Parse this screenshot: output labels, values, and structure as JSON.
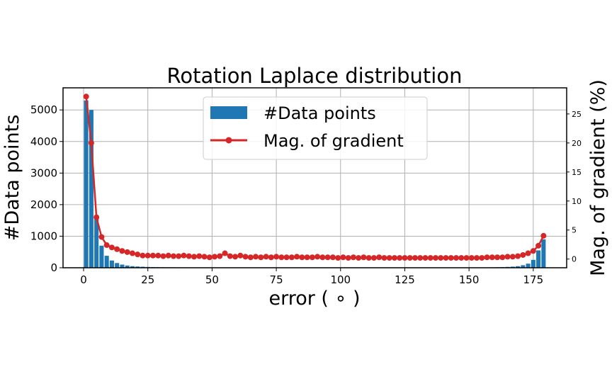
{
  "chart_data": {
    "type": "bar+line",
    "title": "Rotation Laplace distribution",
    "xlabel": "error ( ∘ )",
    "ylabel_left": "#Data points",
    "ylabel_right": "Mag. of gradient (%)",
    "xlim": [
      -8,
      188
    ],
    "ylim_left": [
      0,
      5700
    ],
    "ylim_right": [
      -1.5,
      29.5
    ],
    "x_ticks": [
      0,
      25,
      50,
      75,
      100,
      125,
      150,
      175
    ],
    "y_left_ticks": [
      0,
      1000,
      2000,
      3000,
      4000,
      5000
    ],
    "y_right_ticks": [
      0,
      5,
      10,
      15,
      20,
      25
    ],
    "grid": true,
    "legend_position": "top-center",
    "colors": {
      "bars": "#1f77b4",
      "line": "#d62728"
    },
    "series": [
      {
        "name": "#Data points",
        "type": "bar",
        "axis": "left",
        "bin_width": 2,
        "x": [
          1,
          3,
          5,
          7,
          9,
          11,
          13,
          15,
          17,
          19,
          21,
          23,
          25,
          27,
          29,
          31,
          33,
          35,
          37,
          39,
          41,
          43,
          45,
          47,
          49,
          51,
          53,
          55,
          57,
          59,
          61,
          63,
          65,
          67,
          69,
          71,
          73,
          75,
          77,
          79,
          81,
          83,
          85,
          87,
          89,
          91,
          93,
          95,
          97,
          99,
          101,
          103,
          105,
          107,
          109,
          111,
          113,
          115,
          117,
          119,
          121,
          123,
          125,
          127,
          129,
          131,
          133,
          135,
          137,
          139,
          141,
          143,
          145,
          147,
          149,
          151,
          153,
          155,
          157,
          159,
          161,
          163,
          165,
          167,
          169,
          171,
          173,
          175,
          177,
          179
        ],
        "values": [
          5300,
          5000,
          1600,
          700,
          380,
          230,
          150,
          100,
          70,
          50,
          40,
          32,
          26,
          22,
          19,
          17,
          15,
          14,
          13,
          12,
          11,
          11,
          10,
          10,
          10,
          9,
          9,
          9,
          9,
          9,
          8,
          8,
          8,
          8,
          8,
          8,
          8,
          8,
          8,
          8,
          8,
          8,
          8,
          8,
          8,
          8,
          8,
          8,
          8,
          8,
          8,
          8,
          8,
          8,
          8,
          8,
          8,
          8,
          8,
          8,
          8,
          8,
          8,
          8,
          8,
          8,
          8,
          8,
          8,
          8,
          8,
          8,
          8,
          9,
          9,
          9,
          10,
          11,
          12,
          14,
          17,
          21,
          27,
          36,
          50,
          80,
          130,
          250,
          550,
          900
        ]
      },
      {
        "name": "Mag. of gradient",
        "type": "line",
        "axis": "right",
        "x": [
          1,
          3,
          5,
          7,
          9,
          11,
          13,
          15,
          17,
          19,
          21,
          23,
          25,
          27,
          29,
          31,
          33,
          35,
          37,
          39,
          41,
          43,
          45,
          47,
          49,
          51,
          53,
          55,
          57,
          59,
          61,
          63,
          65,
          67,
          69,
          71,
          73,
          75,
          77,
          79,
          81,
          83,
          85,
          87,
          89,
          91,
          93,
          95,
          97,
          99,
          101,
          103,
          105,
          107,
          109,
          111,
          113,
          115,
          117,
          119,
          121,
          123,
          125,
          127,
          129,
          131,
          133,
          135,
          137,
          139,
          141,
          143,
          145,
          147,
          149,
          151,
          153,
          155,
          157,
          159,
          161,
          163,
          165,
          167,
          169,
          171,
          173,
          175,
          177,
          179
        ],
        "values": [
          28.0,
          20.0,
          7.2,
          3.8,
          2.4,
          2.0,
          1.7,
          1.4,
          1.2,
          1.0,
          0.8,
          0.6,
          0.6,
          0.6,
          0.6,
          0.5,
          0.6,
          0.5,
          0.5,
          0.6,
          0.5,
          0.4,
          0.5,
          0.4,
          0.3,
          0.4,
          0.5,
          1.0,
          0.5,
          0.4,
          0.6,
          0.4,
          0.3,
          0.4,
          0.3,
          0.4,
          0.3,
          0.4,
          0.3,
          0.3,
          0.3,
          0.4,
          0.3,
          0.3,
          0.3,
          0.4,
          0.3,
          0.3,
          0.3,
          0.2,
          0.3,
          0.2,
          0.3,
          0.2,
          0.3,
          0.2,
          0.2,
          0.3,
          0.2,
          0.2,
          0.2,
          0.2,
          0.2,
          0.2,
          0.2,
          0.2,
          0.2,
          0.2,
          0.2,
          0.2,
          0.2,
          0.2,
          0.2,
          0.2,
          0.2,
          0.2,
          0.2,
          0.2,
          0.3,
          0.3,
          0.3,
          0.3,
          0.4,
          0.4,
          0.5,
          0.7,
          1.0,
          1.4,
          2.3,
          4.0
        ]
      }
    ]
  }
}
